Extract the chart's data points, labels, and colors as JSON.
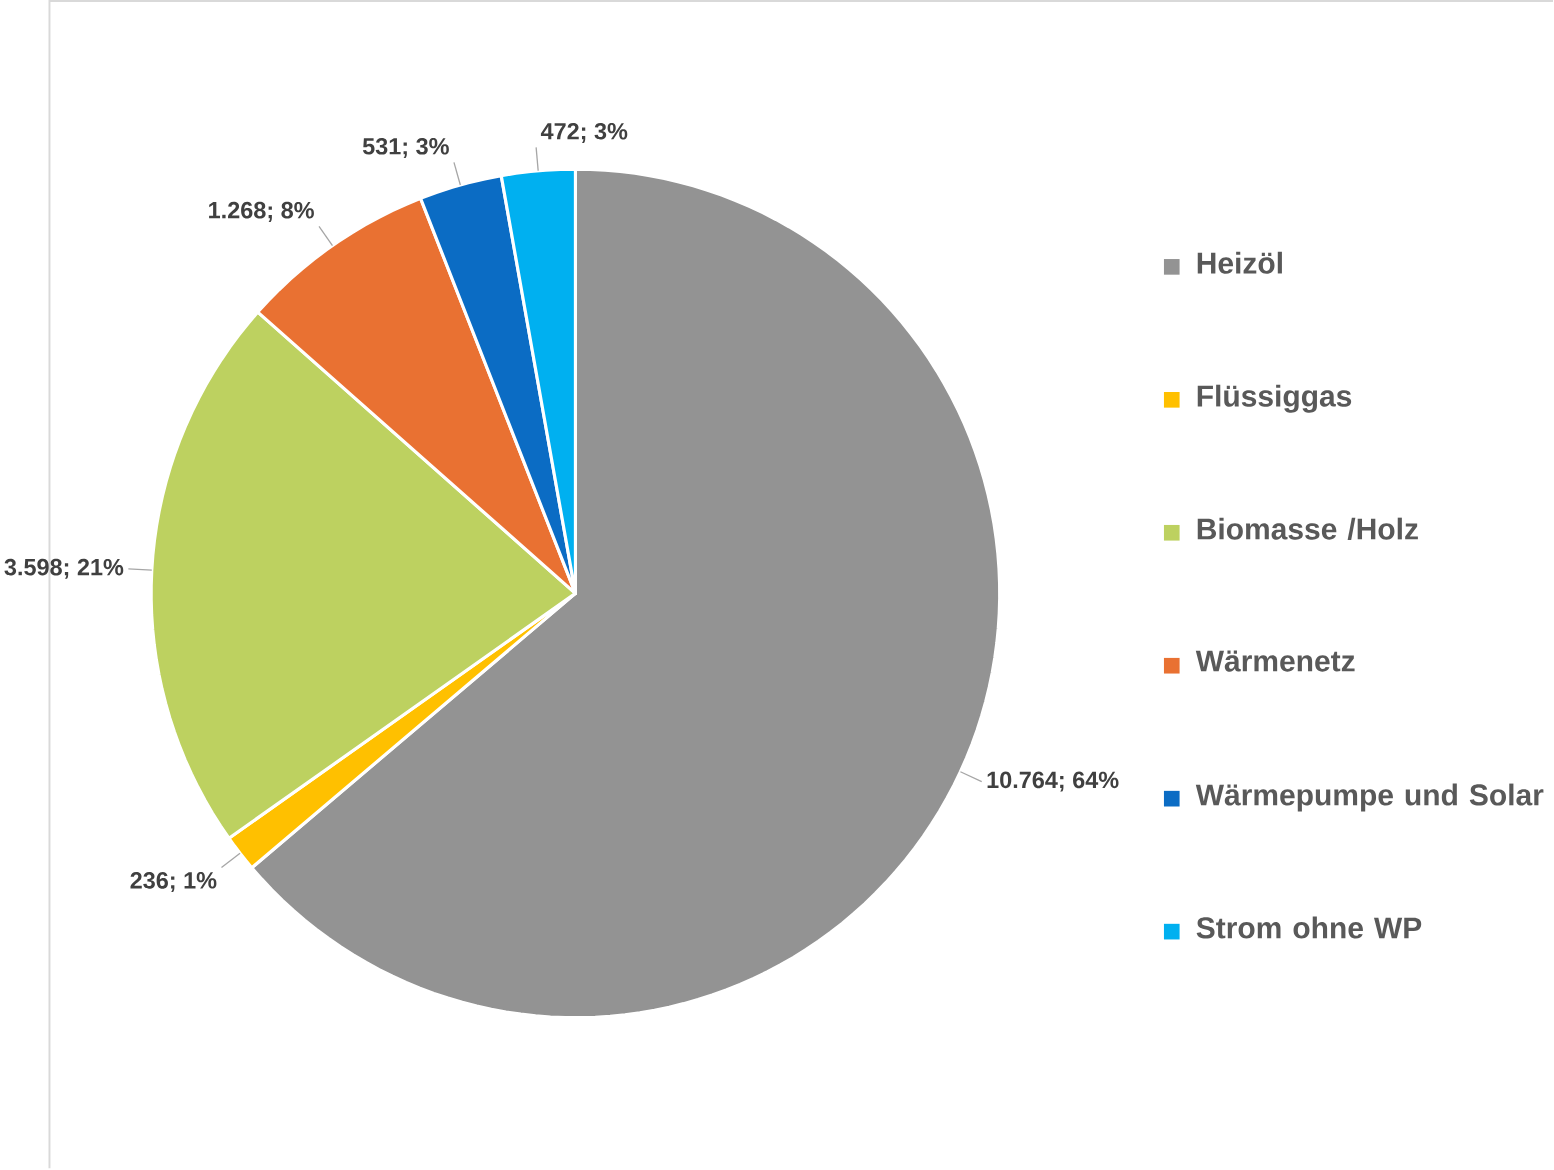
{
  "chart_data": {
    "type": "pie",
    "legend": "right",
    "categories": [
      "Heizöl",
      "Flüssiggas",
      "Biomasse /Holz",
      "Wärmenetz",
      "Wärmepumpe und Solar",
      "Strom ohne WP"
    ],
    "values": [
      10764,
      236,
      3598,
      1268,
      531,
      472
    ],
    "colors": [
      "#939393",
      "#ffc000",
      "#bdd160",
      "#e97132",
      "#0b6cc4",
      "#00b0f0"
    ],
    "value_labels": [
      "10.764; 64%",
      "236; 1%",
      "3.598; 21%",
      "1.268; 8%",
      "531; 3%",
      "472; 3%"
    ]
  }
}
